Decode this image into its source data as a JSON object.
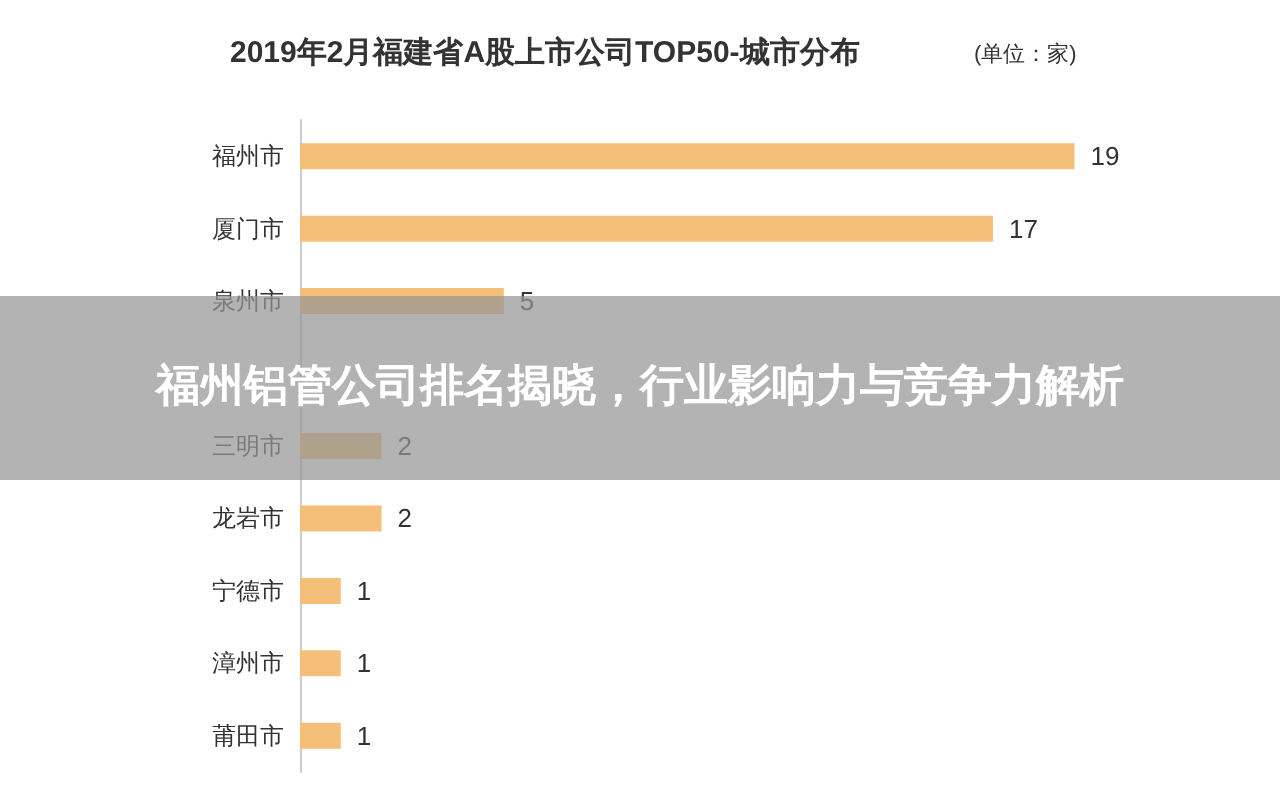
{
  "chart_data": {
    "type": "bar",
    "orientation": "horizontal",
    "title": "2019年2月福建省A股上市公司TOP50-城市分布",
    "subtitle": "(单位：家)",
    "categories": [
      "福州市",
      "厦门市",
      "泉州市",
      null,
      "三明市",
      "龙岩市",
      "宁德市",
      "漳州市",
      "莆田市"
    ],
    "values": [
      19,
      17,
      5,
      null,
      2,
      2,
      1,
      1,
      1
    ],
    "color": "#f4bf78",
    "data_labels": true,
    "annotations": [
      "福州铝管公司排名揭晓，行业影响力与竞争力解析"
    ]
  }
}
